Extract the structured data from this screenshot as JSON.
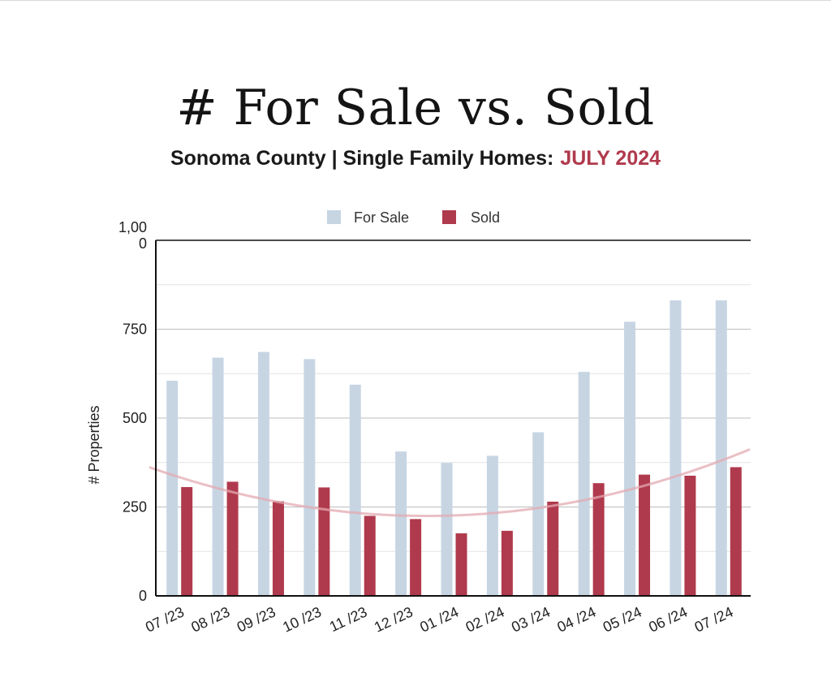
{
  "header": {
    "title": "# For Sale vs. Sold",
    "subtitle_main": "Sonoma County | Single Family Homes:",
    "subtitle_accent": "JULY 2024"
  },
  "colors": {
    "for_sale": "#c7d5e3",
    "sold": "#b03a4d",
    "trend": "#e3a9b1",
    "accent": "#b03a4d"
  },
  "chart_data": {
    "type": "bar",
    "categories": [
      "07 /23",
      "08 /23",
      "09 /23",
      "10 /23",
      "11 /23",
      "12 /23",
      "01 /24",
      "02 /24",
      "03 /24",
      "04 /24",
      "05 /24",
      "06 /24",
      "07 /24"
    ],
    "series": [
      {
        "name": "For Sale",
        "values": [
          605,
          670,
          686,
          666,
          594,
          406,
          374,
          394,
          460,
          630,
          771,
          831,
          831
        ]
      },
      {
        "name": "Sold",
        "values": [
          306,
          321,
          266,
          305,
          225,
          216,
          176,
          183,
          265,
          317,
          341,
          338,
          362
        ]
      }
    ],
    "trendline": {
      "series": "Sold",
      "fit": "polynomial-2"
    },
    "ylabel": "# Properties",
    "ylim": [
      0,
      1000
    ],
    "yticks": [
      {
        "value": 0,
        "label": "0"
      },
      {
        "value": 250,
        "label": "250"
      },
      {
        "value": 500,
        "label": "500"
      },
      {
        "value": 750,
        "label": "750"
      },
      {
        "value": 1000,
        "label": "1,00 0"
      }
    ],
    "grid": true,
    "legend": "top"
  }
}
